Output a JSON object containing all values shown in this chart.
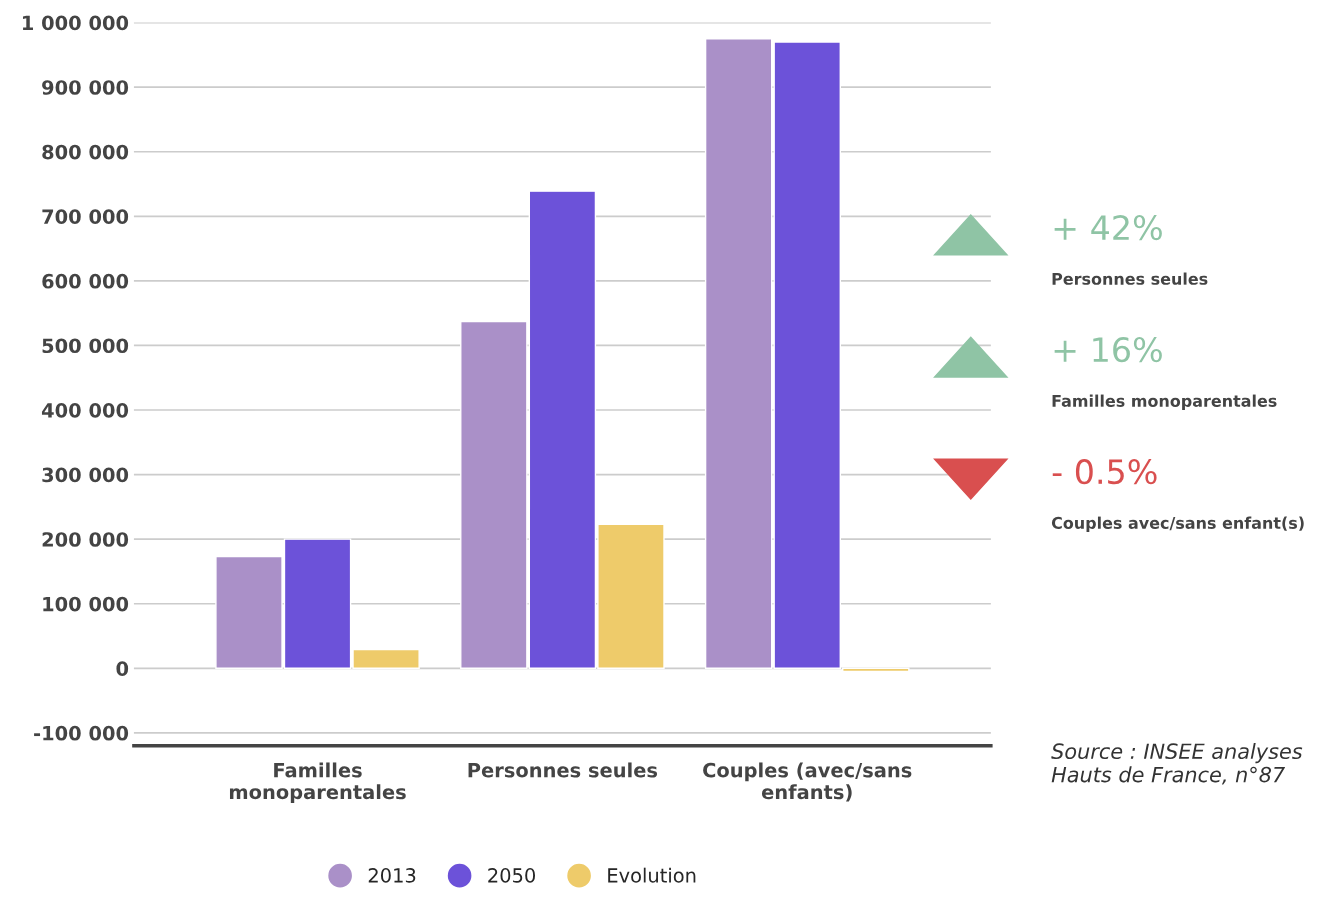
{
  "chart_data": {
    "type": "bar",
    "categories": [
      "Familles monoparentales",
      "Personnes seules",
      "Couples (avec/sans enfants)"
    ],
    "series": [
      {
        "name": "2013",
        "color": "#aa90c8",
        "values": [
          173000,
          537000,
          975000
        ]
      },
      {
        "name": "2050",
        "color": "#6c52d9",
        "values": [
          200000,
          739000,
          970000
        ]
      },
      {
        "name": "Evolution",
        "color": "#eecb6a",
        "values": [
          29000,
          223000,
          -5000
        ]
      }
    ],
    "ylim": [
      -120000,
      1000000
    ],
    "yticks": [
      {
        "value": -100000,
        "label": "-100 000"
      },
      {
        "value": 0,
        "label": "0"
      },
      {
        "value": 100000,
        "label": "100 000"
      },
      {
        "value": 200000,
        "label": "200 000"
      },
      {
        "value": 300000,
        "label": "300 000"
      },
      {
        "value": 400000,
        "label": "400 000"
      },
      {
        "value": 500000,
        "label": "500 000"
      },
      {
        "value": 600000,
        "label": "600 000"
      },
      {
        "value": 700000,
        "label": "700 000"
      },
      {
        "value": 800000,
        "label": "800 000"
      },
      {
        "value": 900000,
        "label": "900 000"
      },
      {
        "value": 1000000,
        "label": "1 000 000"
      }
    ],
    "grid": "y",
    "legend": "bottom",
    "annotations": [
      "+ 42%",
      "Personnes seules",
      "+ 16%",
      "Familles monoparentales",
      "- 0.5%",
      "Couples avec/sans enfant(s)",
      "Source : INSEE analyses Hauts de France, n°87"
    ]
  }
}
